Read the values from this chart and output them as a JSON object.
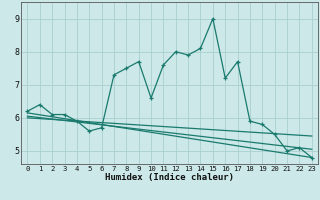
{
  "title": "",
  "xlabel": "Humidex (Indice chaleur)",
  "ylabel": "",
  "bg_color": "#cce8e8",
  "line_color": "#1a7a6e",
  "grid_color": "#aacfcf",
  "xlim": [
    -0.5,
    23.5
  ],
  "ylim": [
    4.6,
    9.5
  ],
  "xticks": [
    0,
    1,
    2,
    3,
    4,
    5,
    6,
    7,
    8,
    9,
    10,
    11,
    12,
    13,
    14,
    15,
    16,
    17,
    18,
    19,
    20,
    21,
    22,
    23
  ],
  "yticks": [
    5,
    6,
    7,
    8,
    9
  ],
  "line1_x": [
    0,
    1,
    2,
    3,
    4,
    5,
    6,
    7,
    8,
    9,
    10,
    11,
    12,
    13,
    14,
    15,
    16,
    17,
    18,
    19,
    20,
    21,
    22,
    23
  ],
  "line1_y": [
    6.2,
    6.4,
    6.1,
    6.1,
    5.9,
    5.6,
    5.7,
    7.3,
    7.5,
    7.7,
    6.6,
    7.6,
    8.0,
    7.9,
    8.1,
    9.0,
    7.2,
    7.7,
    5.9,
    5.8,
    5.5,
    5.0,
    5.1,
    4.8
  ],
  "line2_x": [
    0,
    23
  ],
  "line2_y": [
    6.15,
    4.8
  ],
  "line3_x": [
    0,
    23
  ],
  "line3_y": [
    6.05,
    5.05
  ],
  "line4_x": [
    0,
    23
  ],
  "line4_y": [
    6.0,
    5.45
  ]
}
